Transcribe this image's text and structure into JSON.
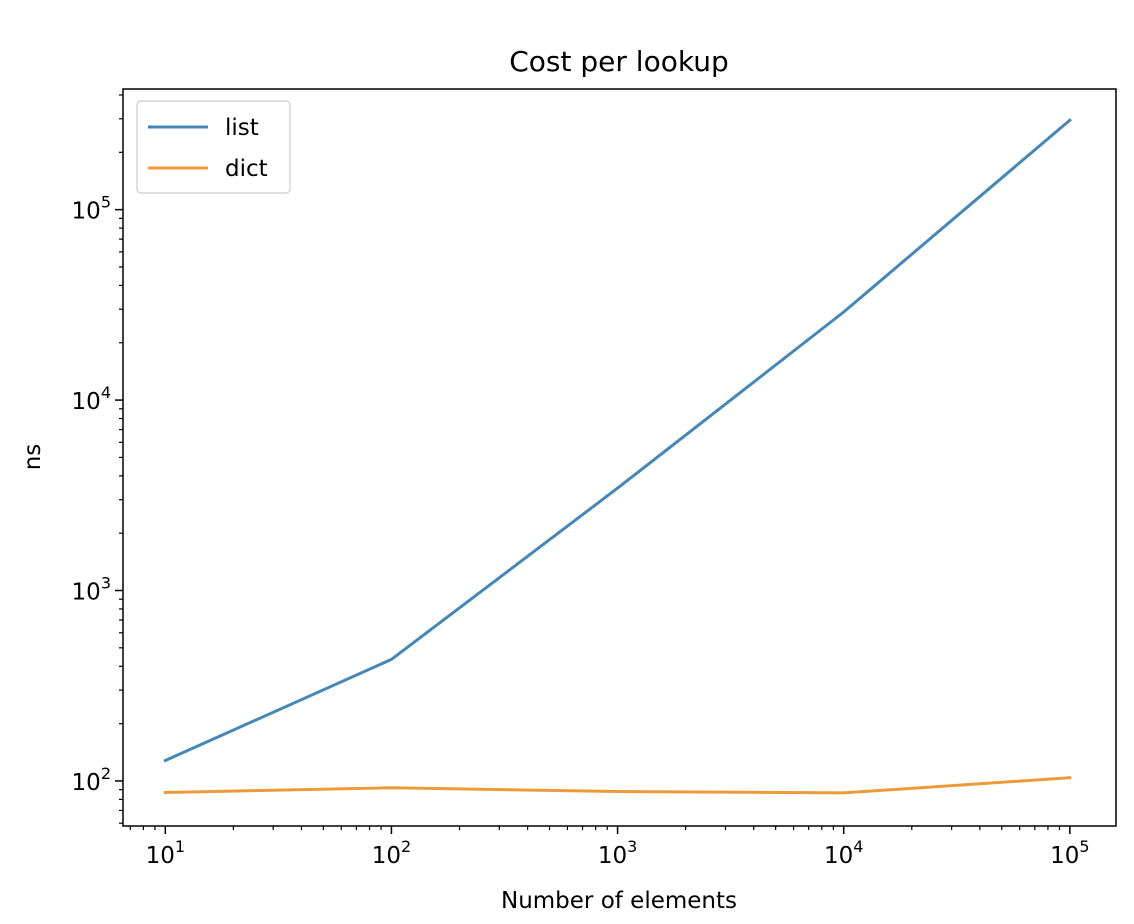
{
  "chart_data": {
    "type": "line",
    "title": "Cost per lookup",
    "xlabel": "Number of elements",
    "ylabel": "ns",
    "xscale": "log",
    "yscale": "log",
    "xlim": [
      6.5,
      160000
    ],
    "ylim": [
      58,
      430000
    ],
    "x": [
      10,
      100,
      1000,
      10000,
      100000
    ],
    "x_ticks": [
      {
        "value": 10,
        "base": "10",
        "exp": "1"
      },
      {
        "value": 100,
        "base": "10",
        "exp": "2"
      },
      {
        "value": 1000,
        "base": "10",
        "exp": "3"
      },
      {
        "value": 10000,
        "base": "10",
        "exp": "4"
      },
      {
        "value": 100000,
        "base": "10",
        "exp": "5"
      }
    ],
    "y_ticks": [
      {
        "value": 100,
        "base": "10",
        "exp": "2"
      },
      {
        "value": 1000,
        "base": "10",
        "exp": "3"
      },
      {
        "value": 10000,
        "base": "10",
        "exp": "4"
      },
      {
        "value": 100000,
        "base": "10",
        "exp": "5"
      }
    ],
    "series": [
      {
        "name": "list",
        "color": "#4487b8",
        "values": [
          128,
          435,
          3450,
          29000,
          295000
        ]
      },
      {
        "name": "dict",
        "color": "#ed9a3a",
        "values": [
          87,
          92,
          88,
          86.5,
          104
        ]
      }
    ],
    "legend": "top-left",
    "grid": false
  }
}
